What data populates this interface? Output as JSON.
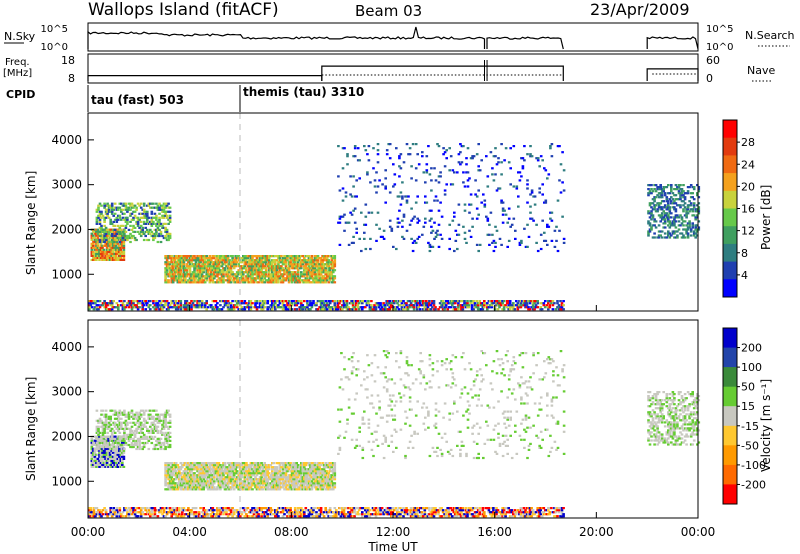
{
  "header": {
    "title": "Wallops Island (fitACF)",
    "beam": "Beam 03",
    "date": "23/Apr/2009"
  },
  "colors": {
    "axis": "#000000",
    "dashed_marker": "#bbbbbb",
    "power_scale": [
      "#0000ff",
      "#1f3fb0",
      "#2e7d80",
      "#3f9f5f",
      "#66c94a",
      "#c8d23c",
      "#f4a11d",
      "#f06a12",
      "#e23a0e",
      "#ff0000"
    ],
    "velocity_scale": [
      "#0000cc",
      "#2244aa",
      "#3a8a3a",
      "#66cc33",
      "#c8c8c0",
      "#ffc830",
      "#ff9a00",
      "#ff6a00",
      "#ff0000"
    ]
  },
  "chart_data": [
    {
      "type": "line",
      "name": "params",
      "left_labels": {
        "nsky": "N.Sky",
        "freq_line1": "Freq.",
        "freq_line2": "[MHz]",
        "cpid": "CPID"
      },
      "right_labels": {
        "nsearch": "N.Search",
        "nave": "Nave"
      },
      "nsky_ticks": [
        "10^5",
        "10^0"
      ],
      "freq_ticks": [
        "18",
        "8"
      ],
      "nave_ticks": [
        "60",
        "0"
      ],
      "nsearch_ticks": [
        "10^5",
        "10^0"
      ],
      "cpid": [
        {
          "start_hour": 0,
          "label": "tau (fast) 503"
        },
        {
          "start_hour": 6.0,
          "label": "themis (tau) 3310"
        }
      ],
      "data_gaps_hours": [
        [
          18.7,
          22.0
        ]
      ],
      "freq_mhz": [
        {
          "from": 0,
          "to": 9.2,
          "value": 10
        },
        {
          "from": 9.2,
          "to": 18.7,
          "value": 13.5
        },
        {
          "from": 22.0,
          "to": 24.0,
          "value": 12.5
        }
      ]
    },
    {
      "type": "heatmap",
      "name": "power",
      "ylabel": "Slant Range [km]",
      "yticks": [
        "4000",
        "3000",
        "2000",
        "1000"
      ],
      "ylim": [
        180,
        4600
      ],
      "xlim": [
        0,
        24
      ],
      "colorbar_label": "Power [dB]",
      "colorbar_ticks": [
        "28",
        "24",
        "20",
        "16",
        "12",
        "8",
        "4"
      ],
      "crange": [
        0,
        32
      ]
    },
    {
      "type": "heatmap",
      "name": "velocity",
      "ylabel": "Slant Range [km]",
      "yticks": [
        "4000",
        "3000",
        "2000",
        "1000"
      ],
      "ylim": [
        180,
        4600
      ],
      "xlim": [
        0,
        24
      ],
      "colorbar_label": "Velocity [m s⁻¹]",
      "colorbar_ticks": [
        "200",
        "100",
        "50",
        "15",
        "-15",
        "-50",
        "-100",
        "-200"
      ]
    }
  ],
  "xaxis": {
    "ticks": [
      "00:00",
      "04:00",
      "08:00",
      "12:00",
      "16:00",
      "20:00",
      "00:00"
    ],
    "label": "Time UT"
  }
}
